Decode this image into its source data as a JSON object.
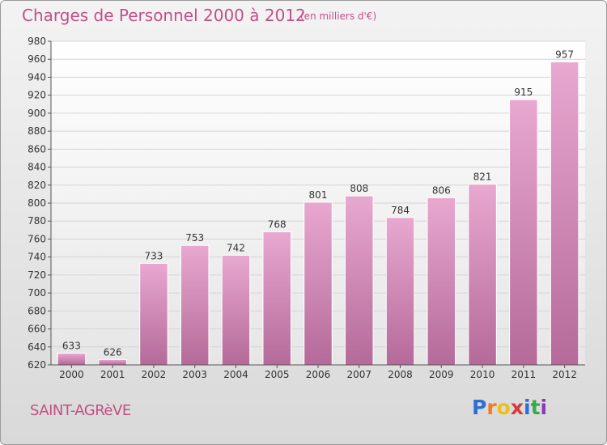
{
  "header": {
    "title": "Charges de Personnel 2000 à 2012",
    "subtitle": "(en milliers d'€)"
  },
  "footer": {
    "town": "SAINT-AGRèVE",
    "brand_letters": [
      "P",
      "r",
      "o",
      "x",
      "i",
      "t",
      "i"
    ],
    "brand_colors": [
      "#2e6fd6",
      "#f07d1a",
      "#e8c21a",
      "#d83a3a",
      "#2e6fd6",
      "#3aa84a",
      "#8a3ab9"
    ]
  },
  "colors": {
    "accent": "#c24f86",
    "bar_top": "#e8a8d0",
    "bar_bottom": "#b56a99"
  },
  "chart_data": {
    "type": "bar",
    "title": "Charges de Personnel 2000 à 2012",
    "subtitle": "(en milliers d'€)",
    "categories": [
      "2000",
      "2001",
      "2002",
      "2003",
      "2004",
      "2005",
      "2006",
      "2007",
      "2008",
      "2009",
      "2010",
      "2011",
      "2012"
    ],
    "values": [
      633,
      626,
      733,
      753,
      742,
      768,
      801,
      808,
      784,
      806,
      821,
      915,
      957
    ],
    "ylim": [
      620,
      980
    ],
    "ytick_step": 20,
    "grid": true,
    "xlabel": "",
    "ylabel": ""
  }
}
